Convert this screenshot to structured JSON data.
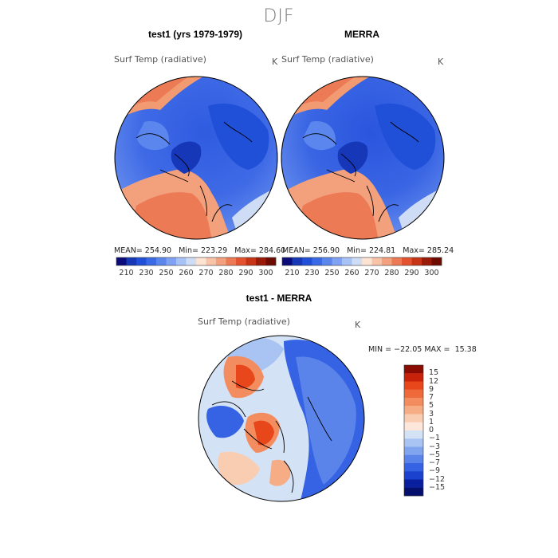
{
  "page": {
    "title": "DJF"
  },
  "panels": [
    {
      "title": "test1 (yrs 1979-1979)",
      "variable": "Surf Temp (radiative)",
      "units": "K",
      "stats": {
        "mean_label": "MEAN=",
        "mean": "254.90",
        "min_label": "Min=",
        "min": "223.29",
        "max_label": "Max=",
        "max": "284.60"
      }
    },
    {
      "title": "MERRA",
      "variable": "Surf Temp (radiative)",
      "units": "K",
      "stats": {
        "mean_label": "MEAN=",
        "mean": "256.90",
        "min_label": "Min=",
        "min": "224.81",
        "max_label": "Max=",
        "max": "285.24"
      }
    },
    {
      "title": "test1 - MERRA",
      "variable": "Surf Temp (radiative)",
      "units": "K",
      "stats": {
        "min_label": "MIN =",
        "min": "−22.05",
        "max_label": "MAX =",
        "max": "15.38"
      }
    }
  ],
  "colorbar_abs": {
    "labels": [
      "210",
      "230",
      "250",
      "260",
      "270",
      "280",
      "290",
      "300"
    ],
    "colors": [
      "#0b0b7a",
      "#1537b8",
      "#2150d8",
      "#3a6ae6",
      "#5a86ee",
      "#7fa3f2",
      "#a9c2f4",
      "#cfdcf6",
      "#fde3d2",
      "#f8c3a8",
      "#f3a07c",
      "#ec7a55",
      "#e3532f",
      "#c83416",
      "#9a1a08",
      "#6e0a02"
    ]
  },
  "colorbar_diff": {
    "labels": [
      "15",
      "12",
      "9",
      "7",
      "5",
      "3",
      "1",
      "0",
      "−1",
      "−3",
      "−5",
      "−7",
      "−9",
      "−12",
      "−15"
    ],
    "colors": [
      "#8a0c02",
      "#c8220a",
      "#e8461b",
      "#ef6a3a",
      "#f38d5f",
      "#f6ad86",
      "#f9cdb1",
      "#fde7db",
      "#d4e2f6",
      "#a9c4f2",
      "#80a4ee",
      "#5a84ea",
      "#3663e3",
      "#1a42cf",
      "#0a1f9e",
      "#05106e"
    ]
  },
  "chart_data": [
    {
      "type": "heatmap",
      "title": "test1 (yrs 1979-1979)",
      "variable": "Surf Temp (radiative)",
      "units": "K",
      "projection": "north polar stereographic",
      "mean": 254.9,
      "min": 223.29,
      "max": 284.6,
      "levels": [
        210,
        230,
        250,
        260,
        270,
        280,
        290,
        300
      ]
    },
    {
      "type": "heatmap",
      "title": "MERRA",
      "variable": "Surf Temp (radiative)",
      "units": "K",
      "projection": "north polar stereographic",
      "mean": 256.9,
      "min": 224.81,
      "max": 285.24,
      "levels": [
        210,
        230,
        250,
        260,
        270,
        280,
        290,
        300
      ]
    },
    {
      "type": "heatmap",
      "title": "test1 - MERRA",
      "variable": "Surf Temp (radiative)",
      "units": "K",
      "projection": "north polar stereographic",
      "min": -22.05,
      "max": 15.38,
      "levels": [
        15,
        12,
        9,
        7,
        5,
        3,
        1,
        0,
        -1,
        -3,
        -5,
        -7,
        -9,
        -12,
        -15
      ]
    }
  ]
}
